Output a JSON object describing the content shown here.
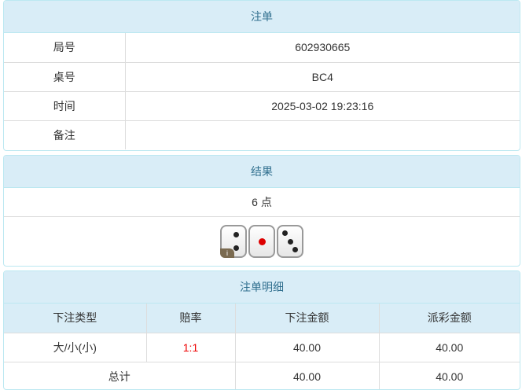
{
  "bet": {
    "title": "注单",
    "rows": [
      {
        "label": "局号",
        "value": "602930665"
      },
      {
        "label": "桌号",
        "value": "BC4"
      },
      {
        "label": "时间",
        "value": "2025-03-02 19:23:16"
      },
      {
        "label": "备注",
        "value": ""
      }
    ]
  },
  "result": {
    "title": "结果",
    "points": "6 点",
    "dice": [
      2,
      1,
      3
    ],
    "info_badge": "i"
  },
  "detail": {
    "title": "注单明细",
    "headers": [
      "下注类型",
      "赔率",
      "下注金额",
      "派彩金额"
    ],
    "rows": [
      {
        "type": "大/小(小)",
        "odds": "1:1",
        "bet": "40.00",
        "payout": "40.00"
      }
    ],
    "total": {
      "label": "总计",
      "bet": "40.00",
      "payout": "40.00"
    }
  },
  "colors": {
    "header_bg": "#d9edf7",
    "header_text": "#31708f",
    "odds": "#ee0000"
  }
}
